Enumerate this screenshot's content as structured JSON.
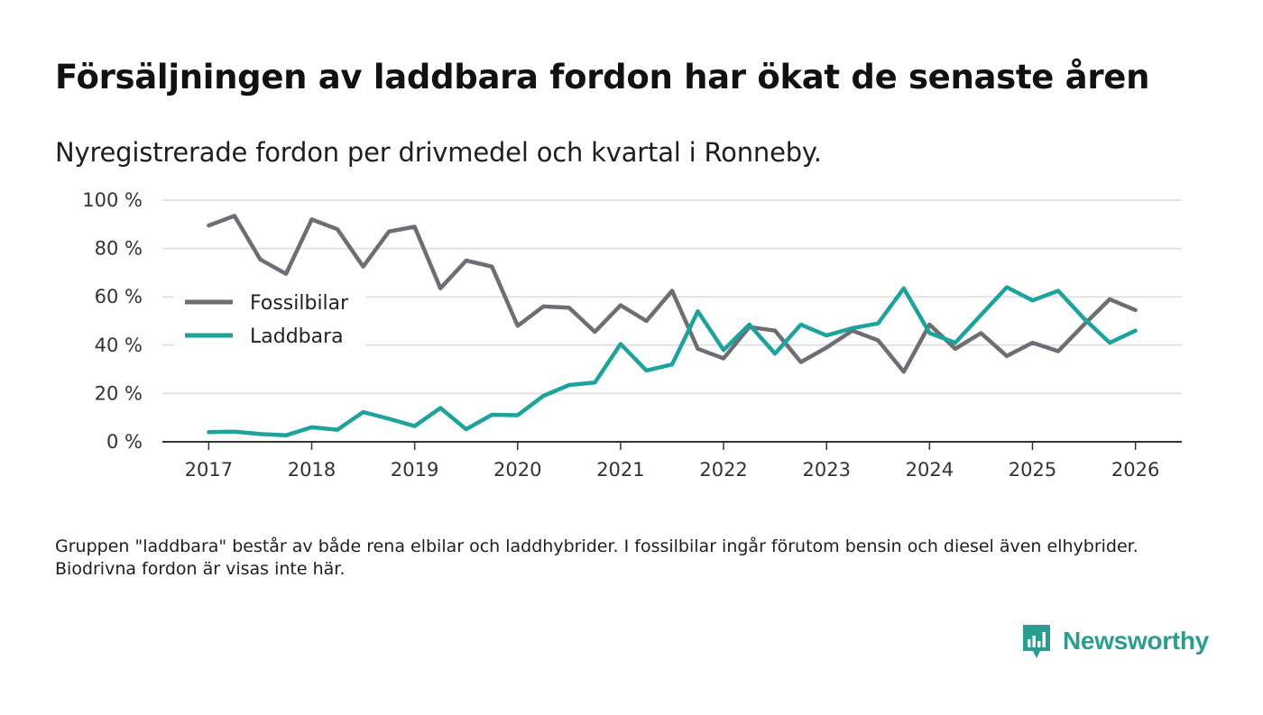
{
  "title": "Försäljningen av laddbara fordon har ökat de senaste åren",
  "subtitle": "Nyregistrerade fordon per drivmedel och kvartal i Ronneby.",
  "note": "Gruppen \"laddbara\" består av både rena elbilar och laddhybrider. I fossilbilar ingår förutom bensin och diesel även elhybrider. Biodrivna fordon är visas inte här.",
  "brand": {
    "name": "Newsworthy",
    "icon": "newsworthy-logo-icon",
    "color": "#2a9d8f"
  },
  "chart_data": {
    "type": "line",
    "title": "Försäljningen av laddbara fordon har ökat de senaste åren",
    "xlabel": "",
    "ylabel": "",
    "x": [
      2017,
      2017.25,
      2017.5,
      2017.75,
      2018,
      2018.25,
      2018.5,
      2018.75,
      2019,
      2019.25,
      2019.5,
      2019.75,
      2020,
      2020.25,
      2020.5,
      2020.75,
      2021,
      2021.25,
      2021.5,
      2021.75,
      2022,
      2022.25,
      2022.5,
      2022.75,
      2023,
      2023.25,
      2023.5,
      2023.75,
      2024,
      2024.25,
      2024.5,
      2024.75,
      2025,
      2025.25,
      2025.5,
      2025.75,
      2026
    ],
    "xticks": [
      2017,
      2018,
      2019,
      2020,
      2021,
      2022,
      2023,
      2024,
      2025,
      2026
    ],
    "xtick_labels": [
      "2017",
      "2018",
      "2019",
      "2020",
      "2021",
      "2022",
      "2023",
      "2024",
      "2025",
      "2026"
    ],
    "xlim": [
      2016.55,
      2026.45
    ],
    "ylim": [
      0,
      100
    ],
    "yticks": [
      0,
      20,
      40,
      60,
      80,
      100
    ],
    "ytick_labels": [
      "0 %",
      "20 %",
      "40 %",
      "60 %",
      "80 %",
      "100 %"
    ],
    "grid": true,
    "legend_position": "center-left",
    "series": [
      {
        "name": "Fossilbilar",
        "color": "#6e6d75",
        "values": [
          89.5,
          93.5,
          75.5,
          69.5,
          92,
          88,
          72.5,
          87,
          89,
          63.5,
          75,
          72.5,
          48,
          56,
          55.5,
          45.5,
          56.5,
          50,
          62.5,
          38.5,
          34.5,
          47.5,
          46,
          33,
          39,
          46,
          42,
          29,
          48.5,
          38.5,
          45,
          35.5,
          41,
          37.5,
          48.5,
          59,
          54.5
        ]
      },
      {
        "name": "Laddbara",
        "color": "#1ba39c",
        "values": [
          4,
          4.2,
          3.2,
          2.7,
          6,
          5,
          12.3,
          9.5,
          6.5,
          14,
          5.2,
          11.2,
          11,
          19,
          23.5,
          24.5,
          40.5,
          29.5,
          32,
          54,
          38,
          48.5,
          36.5,
          48.5,
          44,
          47,
          49,
          63.5,
          45,
          41,
          52.5,
          64,
          58.5,
          62.5,
          51,
          41,
          46
        ]
      }
    ]
  }
}
